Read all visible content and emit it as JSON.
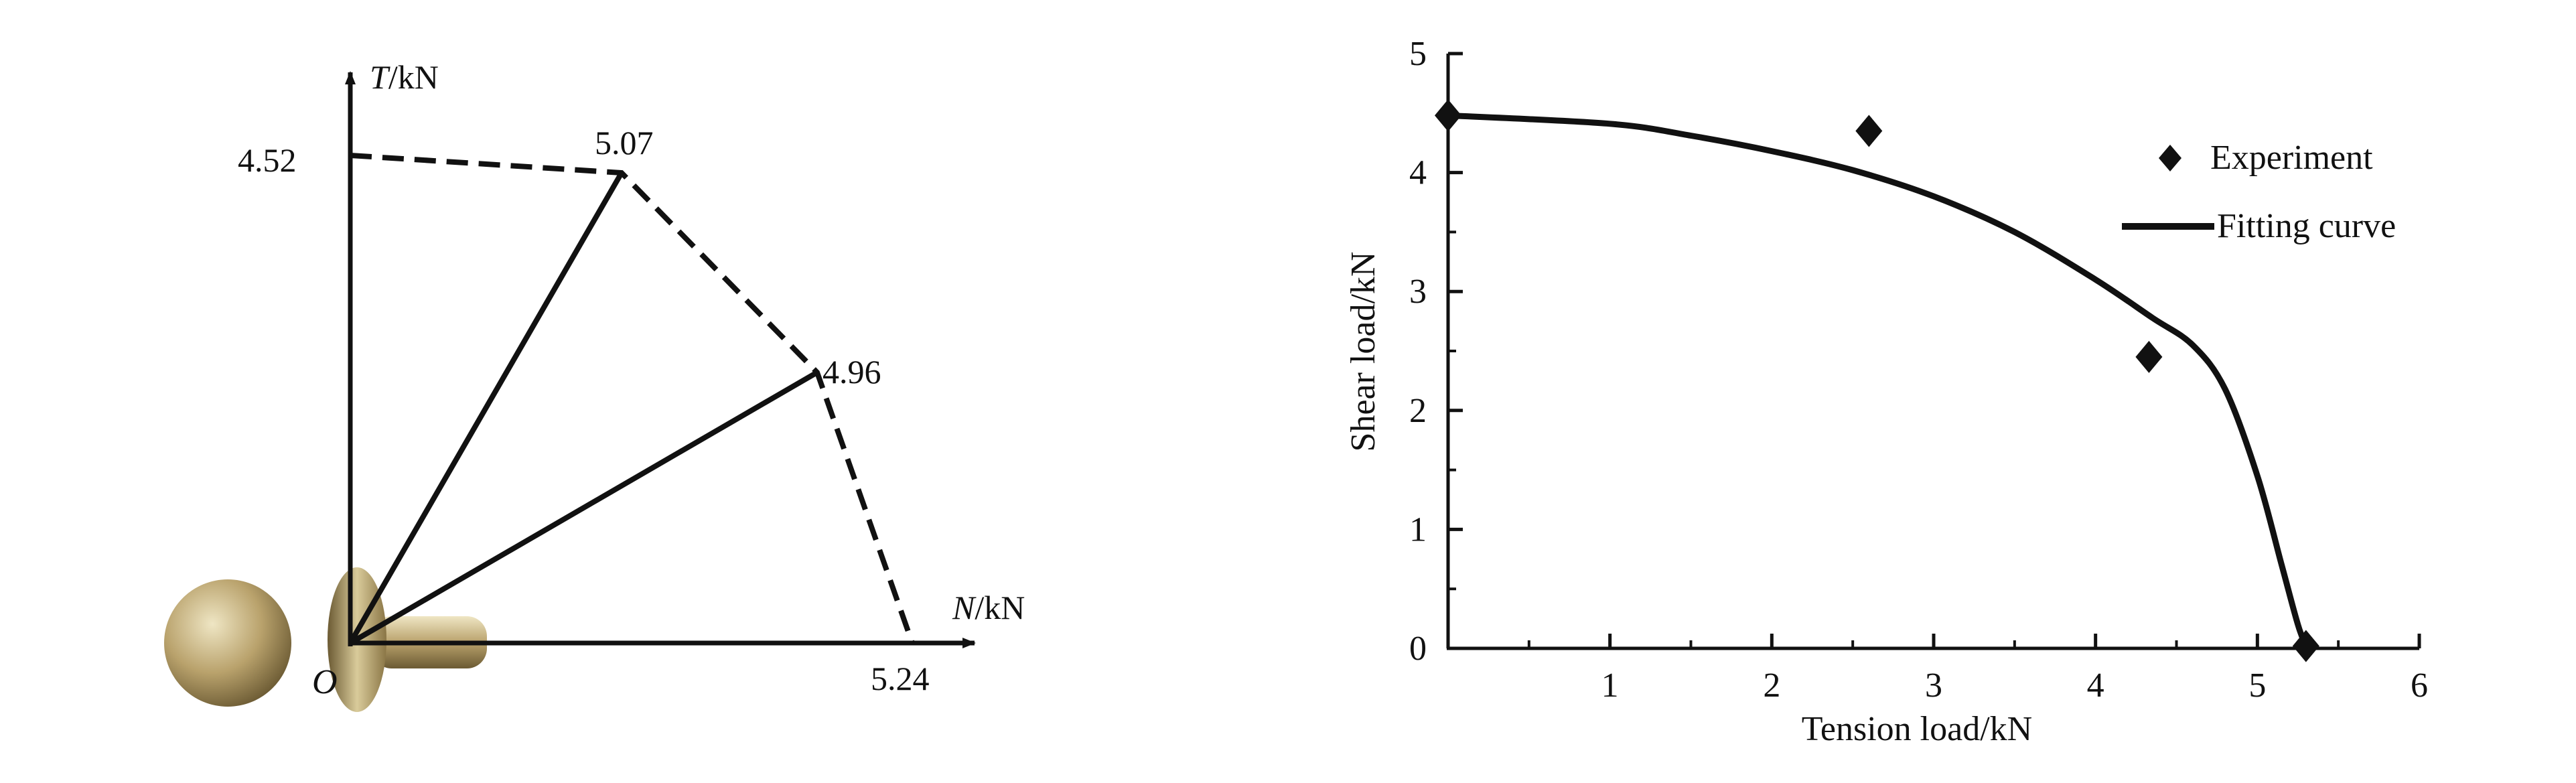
{
  "colors": {
    "ink": "#111111",
    "rivet_light": "#efe6c4",
    "rivet_mid": "#b9a26c",
    "rivet_dark": "#6b5a33"
  },
  "chart_data": [
    {
      "type": "diagram",
      "icon": "rivet-icon",
      "axes": {
        "vertical": "T/kN",
        "horizontal": "N/kN",
        "origin": "O"
      },
      "axis_parts": {
        "t_symbol": "T",
        "t_unit": "/kN",
        "n_symbol": "N",
        "n_unit": "/kN",
        "origin_symbol": "O"
      },
      "points": [
        {
          "label": "4.52",
          "angle_deg": 90,
          "value": 4.52
        },
        {
          "label": "5.07",
          "angle_deg": 60,
          "value": 5.07
        },
        {
          "label": "4.96",
          "angle_deg": 30,
          "value": 4.96
        },
        {
          "label": "5.24",
          "angle_deg": 0,
          "value": 5.24
        }
      ]
    },
    {
      "type": "scatter",
      "xlabel": "Tension load/kN",
      "ylabel": "Shear load/kN",
      "xlim": [
        0,
        6
      ],
      "ylim": [
        0,
        5
      ],
      "xticks": [
        1,
        2,
        3,
        4,
        5,
        6
      ],
      "yticks": [
        0,
        1,
        2,
        3,
        4,
        5
      ],
      "grid": false,
      "legend_position": "top-right",
      "series": [
        {
          "name": "Experiment",
          "marker": "diamond",
          "points": [
            {
              "x": 0,
              "y": 4.48
            },
            {
              "x": 2.6,
              "y": 4.35
            },
            {
              "x": 4.33,
              "y": 2.45
            },
            {
              "x": 5.3,
              "y": 0.02
            }
          ]
        },
        {
          "name": "Fitting curve",
          "line": "solid",
          "points": [
            {
              "x": 0,
              "y": 4.48
            },
            {
              "x": 1,
              "y": 4.41
            },
            {
              "x": 1.5,
              "y": 4.31
            },
            {
              "x": 2,
              "y": 4.18
            },
            {
              "x": 2.5,
              "y": 4.02
            },
            {
              "x": 3,
              "y": 3.8
            },
            {
              "x": 3.5,
              "y": 3.5
            },
            {
              "x": 4,
              "y": 3.1
            },
            {
              "x": 4.35,
              "y": 2.78
            },
            {
              "x": 4.6,
              "y": 2.55
            },
            {
              "x": 4.8,
              "y": 2.18
            },
            {
              "x": 5.0,
              "y": 1.45
            },
            {
              "x": 5.15,
              "y": 0.7
            },
            {
              "x": 5.25,
              "y": 0.2
            },
            {
              "x": 5.3,
              "y": 0.02
            }
          ]
        }
      ]
    }
  ]
}
